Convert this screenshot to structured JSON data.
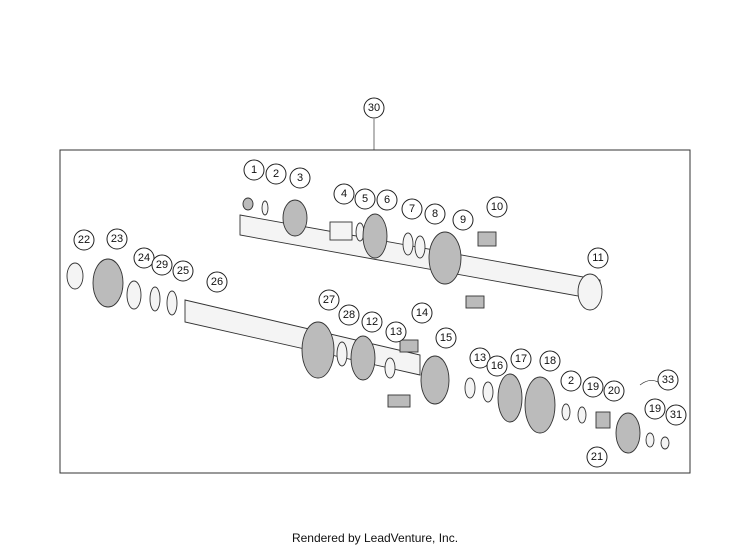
{
  "callouts": [
    {
      "label": "30"
    },
    {
      "label": "1"
    },
    {
      "label": "2"
    },
    {
      "label": "3"
    },
    {
      "label": "4"
    },
    {
      "label": "5"
    },
    {
      "label": "6"
    },
    {
      "label": "7"
    },
    {
      "label": "8"
    },
    {
      "label": "9"
    },
    {
      "label": "10"
    },
    {
      "label": "11"
    },
    {
      "label": "22"
    },
    {
      "label": "23"
    },
    {
      "label": "24"
    },
    {
      "label": "29"
    },
    {
      "label": "25"
    },
    {
      "label": "26"
    },
    {
      "label": "27"
    },
    {
      "label": "28"
    },
    {
      "label": "12"
    },
    {
      "label": "14"
    },
    {
      "label": "13"
    },
    {
      "label": "15"
    },
    {
      "label": "13"
    },
    {
      "label": "16"
    },
    {
      "label": "17"
    },
    {
      "label": "18"
    },
    {
      "label": "2"
    },
    {
      "label": "19"
    },
    {
      "label": "20"
    },
    {
      "label": "33"
    },
    {
      "label": "19"
    },
    {
      "label": "31"
    },
    {
      "label": "21"
    }
  ],
  "footer": "Rendered by LeadVenture, Inc."
}
